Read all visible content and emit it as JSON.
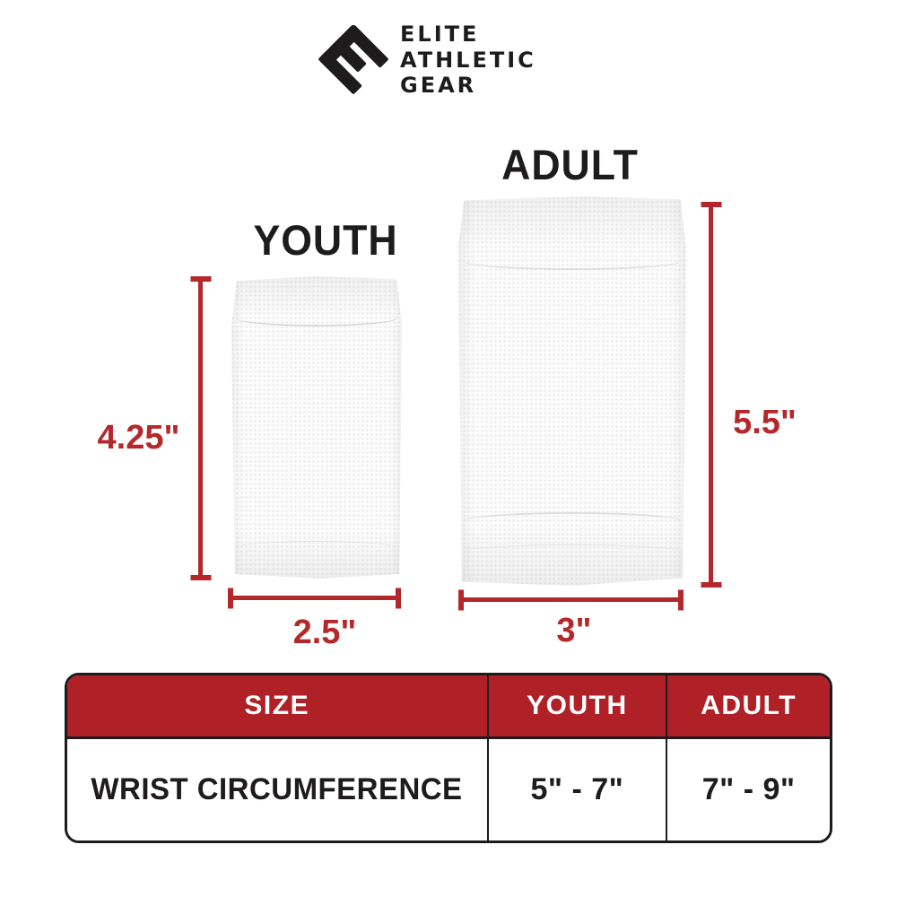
{
  "brand": {
    "icon": "rotated-e-logo",
    "line1": "ELITE",
    "line2": "ATHLETIC",
    "line3": "GEAR"
  },
  "products": {
    "youth": {
      "label": "YOUTH",
      "height_label": "4.25\"",
      "width_label": "2.5\""
    },
    "adult": {
      "label": "ADULT",
      "height_label": "5.5\"",
      "width_label": "3\""
    }
  },
  "size_table": {
    "columns": {
      "size": "SIZE",
      "youth": "YOUTH",
      "adult": "ADULT"
    },
    "row": {
      "label": "WRIST CIRCUMFERENCE",
      "youth_value": "5\" - 7\"",
      "adult_value": "7\" - 9\""
    }
  },
  "colors": {
    "accent_red": "#AF2126",
    "dimension_red": "#B4282C",
    "text_black": "#1D1B1C"
  }
}
